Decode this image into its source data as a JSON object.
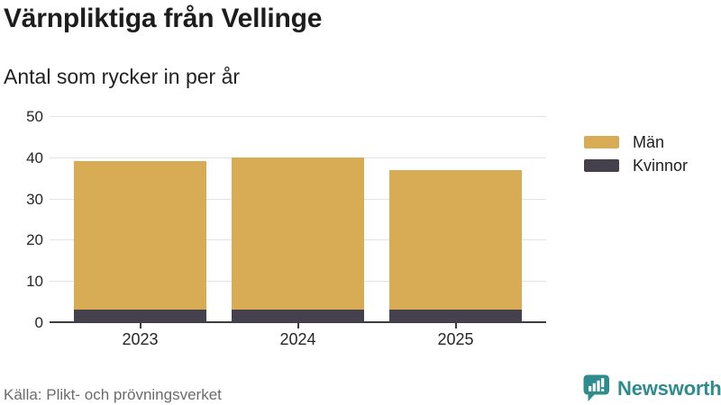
{
  "header": {
    "title": "Värnpliktiga från Vellinge",
    "subtitle": "Antal som rycker in per år"
  },
  "chart_data": {
    "type": "bar",
    "stacked": true,
    "title": "Värnpliktiga från Vellinge",
    "subtitle": "Antal som rycker in per år",
    "categories": [
      "2023",
      "2024",
      "2025"
    ],
    "series": [
      {
        "name": "Män",
        "color": "#D8AB55",
        "values": [
          36,
          37,
          34
        ]
      },
      {
        "name": "Kvinnor",
        "color": "#44414D",
        "values": [
          3,
          3,
          3
        ]
      }
    ],
    "stack_totals": [
      39,
      40,
      37
    ],
    "xlabel": "",
    "ylabel": "",
    "yticks": [
      0,
      10,
      20,
      30,
      40,
      50
    ],
    "ylim": [
      0,
      50
    ],
    "grid": true,
    "legend_position": "top-right",
    "colors": {
      "grid": "#e3e3e3",
      "axis": "#3d3d3d",
      "tick_text": "#262626"
    }
  },
  "footer": {
    "source": "Källa: Plikt- och prövningsverket",
    "brand": "Newsworthy",
    "brand_color": "#2F8C8E"
  }
}
